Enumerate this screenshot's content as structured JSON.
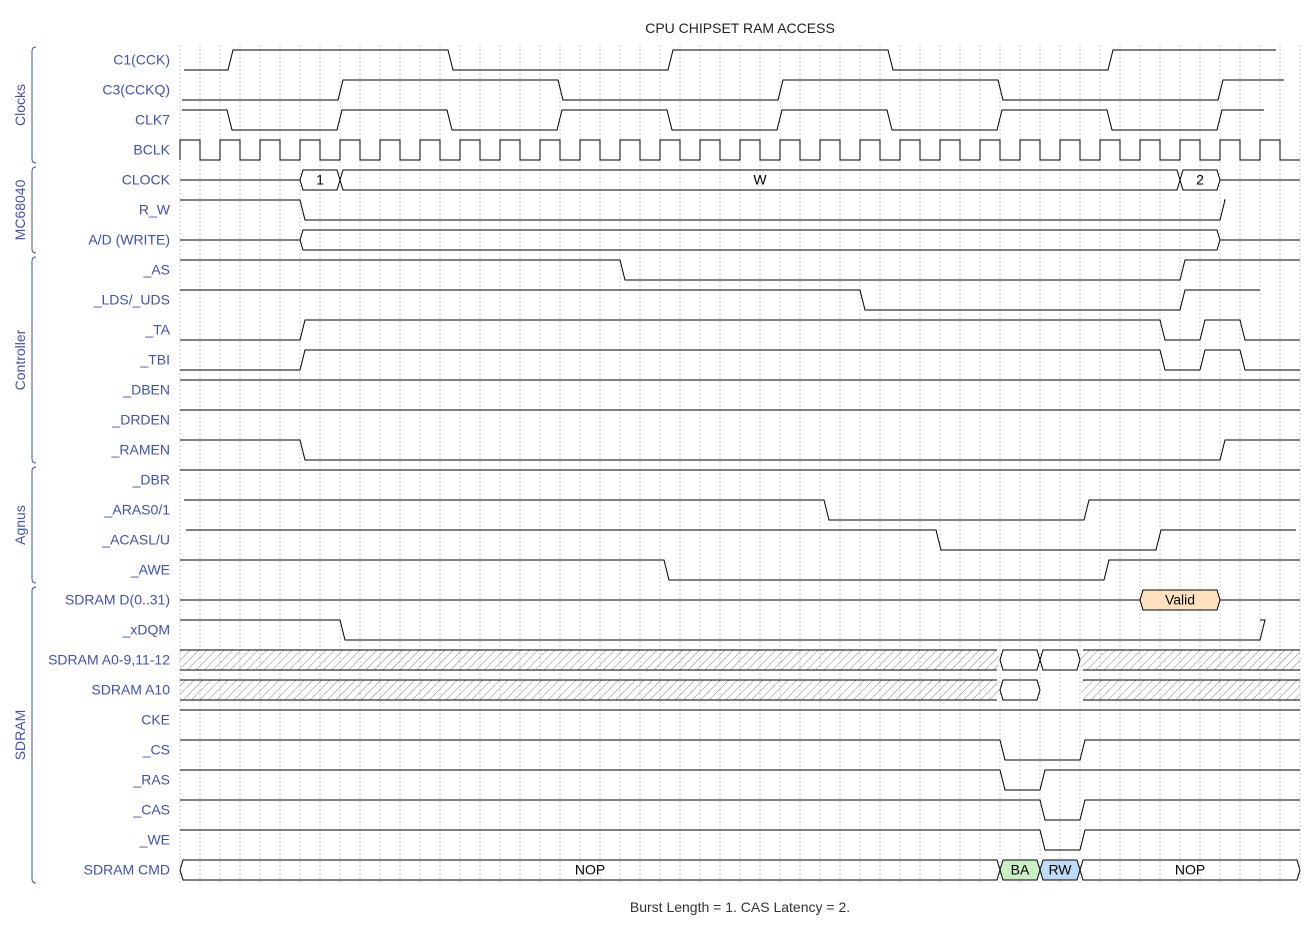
{
  "title": "CPU CHIPSET RAM ACCESS",
  "caption": "Burst Length = 1. CAS Latency = 2.",
  "colors": {
    "label": "#3f51b5",
    "group": "#3f51b5",
    "wave": "#000000",
    "grid": "#cccccc",
    "valid_fill": "#fde0bd",
    "ba_fill": "#c8f0c4",
    "rw_fill": "#bfdcf7"
  },
  "groups": [
    {
      "name": "Clocks",
      "first": 0,
      "last": 3
    },
    {
      "name": "MC68040",
      "first": 4,
      "last": 6
    },
    {
      "name": "Controller",
      "first": 7,
      "last": 13
    },
    {
      "name": "Agnus",
      "first": 14,
      "last": 17
    },
    {
      "name": "SDRAM",
      "first": 18,
      "last": 27
    }
  ],
  "signals": [
    {
      "name": "C1(CCK)",
      "type": "digital",
      "from": 0.2,
      "to": 54.8,
      "initial": 0,
      "edges": [
        [
          2.4,
          1
        ],
        [
          13.4,
          0
        ],
        [
          24.4,
          1
        ],
        [
          35.4,
          0
        ],
        [
          46.4,
          1
        ]
      ]
    },
    {
      "name": "C3(CCKQ)",
      "type": "digital",
      "from": 0.1,
      "to": 55.2,
      "initial": 0,
      "edges": [
        [
          7.9,
          1
        ],
        [
          18.9,
          0
        ],
        [
          29.9,
          1
        ],
        [
          40.9,
          0
        ],
        [
          51.9,
          1
        ]
      ]
    },
    {
      "name": "CLK7",
      "type": "digital",
      "from": 0.1,
      "to": 54.2,
      "initial": 1,
      "edges": [
        [
          2.35,
          0
        ],
        [
          7.85,
          1
        ],
        [
          13.35,
          0
        ],
        [
          18.85,
          1
        ],
        [
          24.35,
          0
        ],
        [
          29.85,
          1
        ],
        [
          35.35,
          0
        ],
        [
          40.85,
          1
        ],
        [
          46.35,
          0
        ],
        [
          51.85,
          1
        ]
      ]
    },
    {
      "name": "BCLK",
      "type": "clock",
      "from": 0,
      "to": 56,
      "period": 2
    },
    {
      "name": "CLOCK",
      "type": "bus",
      "from": 0,
      "to": 56,
      "segments": [
        {
          "from": 0,
          "to": 6,
          "kind": "line"
        },
        {
          "from": 6,
          "to": 8,
          "kind": "data",
          "label": "1"
        },
        {
          "from": 8,
          "to": 50,
          "kind": "data",
          "label": "W"
        },
        {
          "from": 50,
          "to": 52,
          "kind": "data",
          "label": "2"
        },
        {
          "from": 52,
          "to": 56,
          "kind": "line"
        }
      ]
    },
    {
      "name": "R_W",
      "type": "digital",
      "from": 0,
      "to": 52.2,
      "initial": 1,
      "edges": [
        [
          6,
          0
        ],
        [
          52,
          1
        ]
      ]
    },
    {
      "name": "A/D (WRITE)",
      "type": "bus",
      "from": 0,
      "to": 56,
      "segments": [
        {
          "from": 0,
          "to": 6,
          "kind": "line"
        },
        {
          "from": 6,
          "to": 52,
          "kind": "data",
          "label": ""
        },
        {
          "from": 52,
          "to": 56,
          "kind": "line"
        }
      ]
    },
    {
      "name": "_AS",
      "type": "digital",
      "from": 0,
      "to": 56,
      "initial": 1,
      "edges": [
        [
          22,
          0
        ],
        [
          50,
          1
        ]
      ]
    },
    {
      "name": "_LDS/_UDS",
      "type": "digital",
      "from": 0,
      "to": 54,
      "initial": 1,
      "edges": [
        [
          34,
          0
        ],
        [
          50,
          1
        ]
      ]
    },
    {
      "name": "_TA",
      "type": "digital",
      "from": 0,
      "to": 56,
      "initial": 0,
      "edges": [
        [
          6,
          1
        ],
        [
          49,
          0
        ],
        [
          51,
          1
        ],
        [
          53,
          0
        ]
      ]
    },
    {
      "name": "_TBI",
      "type": "digital",
      "from": 0,
      "to": 56,
      "initial": 0,
      "edges": [
        [
          6,
          1
        ],
        [
          49,
          0
        ],
        [
          51,
          1
        ],
        [
          53,
          0
        ]
      ]
    },
    {
      "name": "_DBEN",
      "type": "digital",
      "from": 0,
      "to": 56,
      "initial": 1,
      "edges": []
    },
    {
      "name": "_DRDEN",
      "type": "digital",
      "from": 0,
      "to": 56,
      "initial": 1,
      "edges": []
    },
    {
      "name": "_RAMEN",
      "type": "digital",
      "from": 0,
      "to": 56,
      "initial": 1,
      "edges": [
        [
          6,
          0
        ],
        [
          52,
          1
        ]
      ]
    },
    {
      "name": "_DBR",
      "type": "digital",
      "from": 0,
      "to": 56,
      "initial": 1,
      "edges": []
    },
    {
      "name": "_ARAS0/1",
      "type": "digital",
      "from": 0.2,
      "to": 56,
      "initial": 1,
      "edges": [
        [
          32.2,
          0
        ],
        [
          45.2,
          1
        ]
      ]
    },
    {
      "name": "_ACASL/U",
      "type": "digital",
      "from": 0.3,
      "to": 55.8,
      "initial": 1,
      "edges": [
        [
          37.8,
          0
        ],
        [
          48.8,
          1
        ]
      ]
    },
    {
      "name": "_AWE",
      "type": "digital",
      "from": 0,
      "to": 56,
      "initial": 1,
      "edges": [
        [
          24.2,
          0
        ],
        [
          46.2,
          1
        ]
      ]
    },
    {
      "name": "SDRAM D(0..31)",
      "type": "bus",
      "from": 0,
      "to": 56,
      "segments": [
        {
          "from": 0,
          "to": 48,
          "kind": "line"
        },
        {
          "from": 48,
          "to": 52,
          "kind": "data",
          "label": "Valid",
          "fill": "valid"
        },
        {
          "from": 52,
          "to": 56,
          "kind": "line"
        }
      ]
    },
    {
      "name": "_xDQM",
      "type": "digital",
      "from": 0,
      "to": 54,
      "initial": 1,
      "edges": [
        [
          8,
          0
        ],
        [
          54,
          1
        ]
      ]
    },
    {
      "name": "SDRAM A0-9,11-12",
      "type": "bus",
      "from": 0,
      "to": 56,
      "segments": [
        {
          "from": 0,
          "to": 41,
          "kind": "hatch"
        },
        {
          "from": 41,
          "to": 43,
          "kind": "data",
          "label": ""
        },
        {
          "from": 43,
          "to": 45,
          "kind": "data",
          "label": ""
        },
        {
          "from": 45,
          "to": 56,
          "kind": "hatch"
        }
      ]
    },
    {
      "name": "SDRAM A10",
      "type": "bus",
      "from": 0,
      "to": 56,
      "segments": [
        {
          "from": 0,
          "to": 41,
          "kind": "hatch"
        },
        {
          "from": 41,
          "to": 43,
          "kind": "data",
          "label": ""
        },
        {
          "from": 43,
          "to": 45,
          "kind": "gap"
        },
        {
          "from": 45,
          "to": 56,
          "kind": "hatch"
        }
      ]
    },
    {
      "name": "CKE",
      "type": "digital",
      "from": 0,
      "to": 56,
      "initial": 1,
      "edges": []
    },
    {
      "name": "_CS",
      "type": "digital",
      "from": 0,
      "to": 56,
      "initial": 1,
      "edges": [
        [
          41,
          0
        ],
        [
          45,
          1
        ]
      ]
    },
    {
      "name": "_RAS",
      "type": "digital",
      "from": 0,
      "to": 56,
      "initial": 1,
      "edges": [
        [
          41,
          0
        ],
        [
          43,
          1
        ]
      ]
    },
    {
      "name": "_CAS",
      "type": "digital",
      "from": 0,
      "to": 56,
      "initial": 1,
      "edges": [
        [
          43,
          0
        ],
        [
          45,
          1
        ]
      ]
    },
    {
      "name": "_WE",
      "type": "digital",
      "from": 0,
      "to": 56,
      "initial": 1,
      "edges": [
        [
          43,
          0
        ],
        [
          45,
          1
        ]
      ]
    },
    {
      "name": "SDRAM CMD",
      "type": "bus",
      "from": 0,
      "to": 56,
      "segments": [
        {
          "from": 0,
          "to": 41,
          "kind": "data",
          "label": "NOP"
        },
        {
          "from": 41,
          "to": 43,
          "kind": "data",
          "label": "BA",
          "fill": "ba"
        },
        {
          "from": 43,
          "to": 45,
          "kind": "data",
          "label": "RW",
          "fill": "rw"
        },
        {
          "from": 45,
          "to": 56,
          "kind": "data",
          "label": "NOP"
        }
      ]
    }
  ]
}
